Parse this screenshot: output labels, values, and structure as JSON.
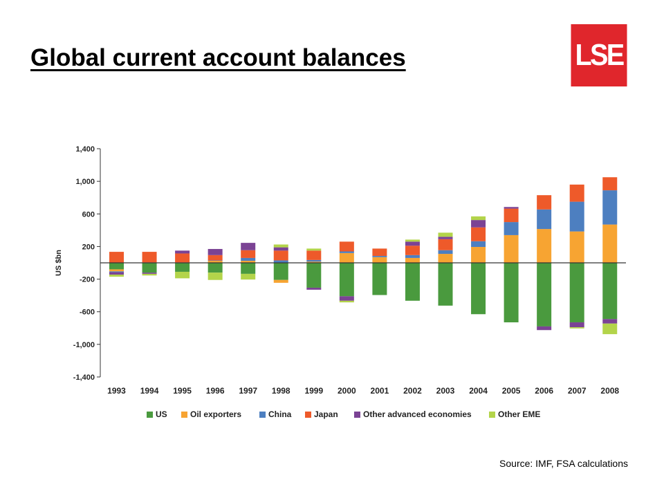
{
  "page": {
    "title": "Global current account balances",
    "logo_text": "LSE",
    "source": "Source: IMF, FSA calculations"
  },
  "chart_data": {
    "type": "bar",
    "stacked": true,
    "ylabel": "US $bn",
    "ylim": [
      -1400,
      1400
    ],
    "yticks": [
      1400,
      1000,
      600,
      200,
      -200,
      -600,
      -1000,
      -1400
    ],
    "ytick_labels": [
      "1,400",
      "1,000",
      "600",
      "200",
      "-200",
      "-600",
      "-1,000",
      "-1,400"
    ],
    "categories": [
      "1993",
      "1994",
      "1995",
      "1996",
      "1997",
      "1998",
      "1999",
      "2000",
      "2001",
      "2002",
      "2003",
      "2004",
      "2005",
      "2006",
      "2007",
      "2008"
    ],
    "legend_position": "bottom",
    "series": [
      {
        "name": "US",
        "color": "#4a9a3e",
        "values": [
          -80,
          -120,
          -110,
          -120,
          -135,
          -210,
          -305,
          -410,
          -395,
          -465,
          -525,
          -630,
          -730,
          -780,
          -730,
          -690
        ]
      },
      {
        "name": "Oil exporters",
        "color": "#f7a432",
        "values": [
          -25,
          0,
          0,
          25,
          25,
          -35,
          15,
          120,
          70,
          60,
          110,
          195,
          340,
          415,
          385,
          470
        ]
      },
      {
        "name": "China",
        "color": "#4d7fc0",
        "values": [
          -10,
          5,
          5,
          5,
          35,
          30,
          20,
          20,
          15,
          35,
          45,
          70,
          160,
          240,
          365,
          420
        ]
      },
      {
        "name": "Japan",
        "color": "#ee5a2a",
        "values": [
          135,
          130,
          110,
          65,
          95,
          120,
          115,
          120,
          90,
          115,
          135,
          170,
          165,
          175,
          210,
          160
        ]
      },
      {
        "name": "Other advanced economies",
        "color": "#7b4394",
        "values": [
          -30,
          -15,
          35,
          75,
          90,
          40,
          -25,
          -55,
          0,
          50,
          30,
          90,
          20,
          -45,
          -60,
          -55
        ]
      },
      {
        "name": "Other EME",
        "color": "#b3d44a",
        "values": [
          -25,
          -20,
          -80,
          -90,
          -70,
          35,
          25,
          -20,
          0,
          25,
          50,
          45,
          0,
          0,
          -15,
          -130
        ]
      }
    ]
  }
}
